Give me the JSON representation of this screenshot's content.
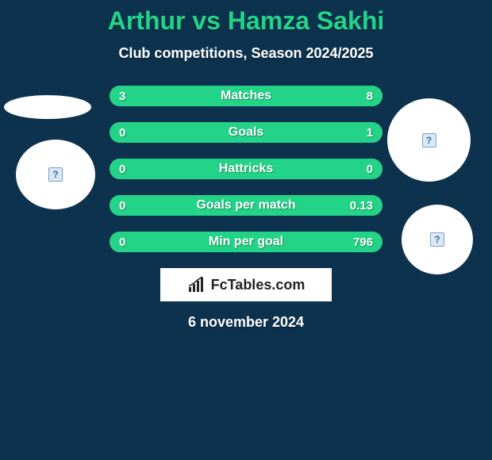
{
  "background_color": "#0d324e",
  "title": {
    "text": "Arthur vs Hamza Sakhi",
    "color": "#23d387",
    "fontsize": 32
  },
  "subtitle": {
    "text": "Club competitions, Season 2024/2025",
    "color": "#ffffff",
    "fontsize": 18
  },
  "stats": {
    "bar_bg_color": "#e08a2e",
    "fill_color": "#23d387",
    "text_color": "#ffffff",
    "label_fontsize": 16,
    "value_fontsize": 15,
    "rows": [
      {
        "label": "Matches",
        "left": "3",
        "right": "8",
        "left_pct": 27,
        "right_pct": 73
      },
      {
        "label": "Goals",
        "left": "0",
        "right": "1",
        "left_pct": 0,
        "right_pct": 100
      },
      {
        "label": "Hattricks",
        "left": "0",
        "right": "0",
        "left_pct": 50,
        "right_pct": 50
      },
      {
        "label": "Goals per match",
        "left": "0",
        "right": "0.13",
        "left_pct": 0,
        "right_pct": 100
      },
      {
        "label": "Min per goal",
        "left": "0",
        "right": "796",
        "left_pct": 0,
        "right_pct": 100
      }
    ]
  },
  "logo": {
    "bg_color": "#ffffff",
    "text": "FcTables.com",
    "text_color": "#222222"
  },
  "date": {
    "text": "6 november 2024",
    "color": "#ffffff",
    "fontsize": 18
  },
  "avatars": {
    "photo_bg": "#ffffff",
    "badge_bg": "#ffffff",
    "placeholder_glyph": "?"
  }
}
